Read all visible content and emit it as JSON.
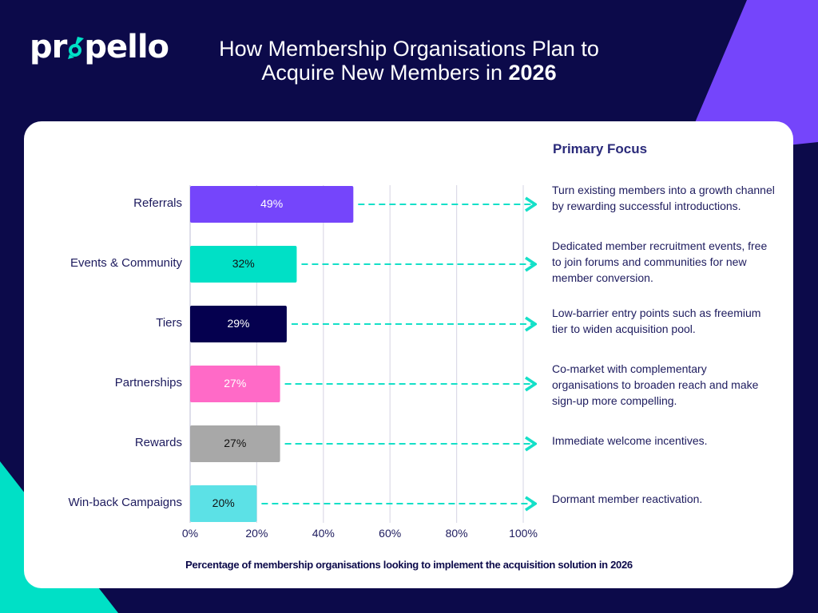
{
  "brand": {
    "logo_text": "propello"
  },
  "title": {
    "line1": "How Membership Organisations Plan to",
    "line2_prefix": "Acquire New Members in ",
    "line2_bold": "2026"
  },
  "primary_focus_heading": "Primary Focus",
  "colors": {
    "background": "#0c0a4a",
    "accent_purple": "#7545fb",
    "accent_teal": "#00e0c6",
    "arrow": "#14e0c8"
  },
  "chart_data": {
    "type": "bar",
    "orientation": "horizontal",
    "categories": [
      "Referrals",
      "Events & Community",
      "Tiers",
      "Partnerships",
      "Rewards",
      "Win-back Campaigns"
    ],
    "values": [
      49,
      32,
      29,
      27,
      27,
      20
    ],
    "value_labels": [
      "49%",
      "32%",
      "29%",
      "27%",
      "27%",
      "20%"
    ],
    "bar_colors": [
      "#7545fb",
      "#00e0c6",
      "#05004f",
      "#ff6ac7",
      "#a8a8a8",
      "#5ce1e6"
    ],
    "label_colors": [
      "#ffffff",
      "#111111",
      "#ffffff",
      "#ffffff",
      "#111111",
      "#111111"
    ],
    "xlim": [
      0,
      100
    ],
    "xticks": [
      "0%",
      "20%",
      "40%",
      "60%",
      "80%",
      "100%"
    ],
    "xlabel": "Percentage of membership organisations looking to implement the acquisition solution in 2026",
    "grid": true,
    "annotations": [
      "Turn existing members into a growth channel by rewarding successful introductions.",
      "Dedicated member recruitment events, free to join forums and communities for new member conversion.",
      "Low-barrier entry points such as freemium tier to widen acquisition pool.",
      "Co-market with complementary organisations to broaden reach and make sign-up more compelling.",
      "Immediate welcome incentives.",
      "Dormant member reactivation."
    ]
  }
}
